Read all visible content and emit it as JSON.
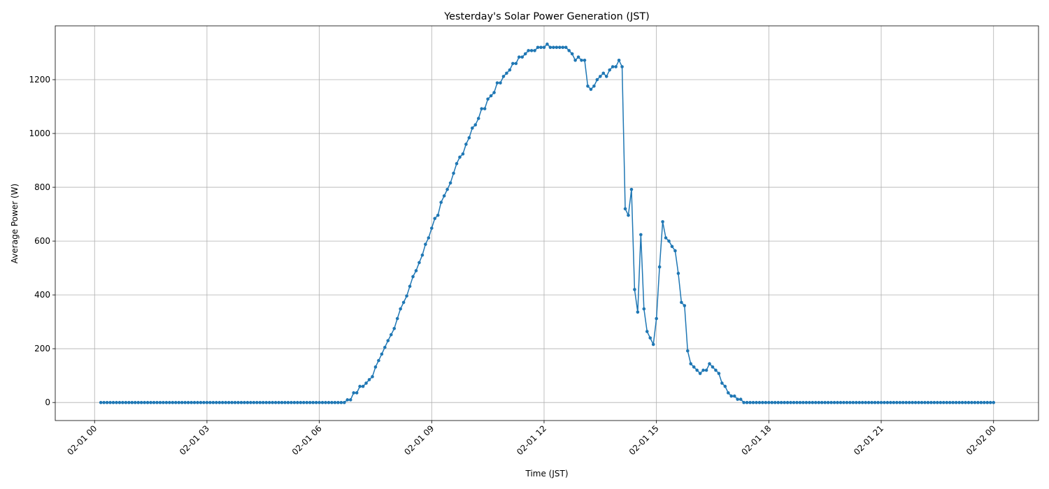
{
  "chart_data": {
    "type": "line",
    "title": "Yesterday's Solar Power Generation (JST)",
    "x_label": "Time (JST)",
    "y_label": "Average Power (W)",
    "x": [
      10,
      15,
      20,
      25,
      30,
      35,
      40,
      45,
      50,
      55,
      60,
      65,
      70,
      75,
      80,
      85,
      90,
      95,
      100,
      105,
      110,
      115,
      120,
      125,
      130,
      135,
      140,
      145,
      150,
      155,
      160,
      165,
      170,
      175,
      180,
      185,
      190,
      195,
      200,
      205,
      210,
      215,
      220,
      225,
      230,
      235,
      240,
      245,
      250,
      255,
      260,
      265,
      270,
      275,
      280,
      285,
      290,
      295,
      300,
      305,
      310,
      315,
      320,
      325,
      330,
      335,
      340,
      345,
      350,
      355,
      360,
      365,
      370,
      375,
      380,
      385,
      390,
      395,
      400,
      405,
      410,
      415,
      420,
      425,
      430,
      435,
      440,
      445,
      450,
      455,
      460,
      465,
      470,
      475,
      480,
      485,
      490,
      495,
      500,
      505,
      510,
      515,
      520,
      525,
      530,
      535,
      540,
      545,
      550,
      555,
      560,
      565,
      570,
      575,
      580,
      585,
      590,
      595,
      600,
      605,
      610,
      615,
      620,
      625,
      630,
      635,
      640,
      645,
      650,
      655,
      660,
      665,
      670,
      675,
      680,
      685,
      690,
      695,
      700,
      705,
      710,
      715,
      720,
      725,
      730,
      735,
      740,
      745,
      750,
      755,
      760,
      765,
      770,
      775,
      780,
      785,
      790,
      795,
      800,
      805,
      810,
      815,
      820,
      825,
      830,
      835,
      840,
      845,
      850,
      855,
      860,
      865,
      870,
      875,
      880,
      885,
      890,
      895,
      900,
      905,
      910,
      915,
      920,
      925,
      930,
      935,
      940,
      945,
      950,
      955,
      960,
      965,
      970,
      975,
      980,
      985,
      990,
      995,
      1000,
      1005,
      1010,
      1015,
      1020,
      1025,
      1030,
      1035,
      1040,
      1045,
      1050,
      1055,
      1060,
      1065,
      1070,
      1075,
      1080,
      1085,
      1090,
      1095,
      1100,
      1105,
      1110,
      1115,
      1120,
      1125,
      1130,
      1135,
      1140,
      1145,
      1150,
      1155,
      1160,
      1165,
      1170,
      1175,
      1180,
      1185,
      1190,
      1195,
      1200,
      1205,
      1210,
      1215,
      1220,
      1225,
      1230,
      1235,
      1240,
      1245,
      1250,
      1255,
      1260,
      1265,
      1270,
      1275,
      1280,
      1285,
      1290,
      1295,
      1300,
      1305,
      1310,
      1315,
      1320,
      1325,
      1330,
      1335,
      1340,
      1345,
      1350,
      1355,
      1360,
      1365,
      1370,
      1375,
      1380,
      1385,
      1390,
      1395,
      1400,
      1405,
      1410,
      1415,
      1420,
      1425,
      1430,
      1435,
      1440
    ],
    "series": [
      {
        "name": "Average Power",
        "color": "#1f77b4",
        "values": [
          0,
          0,
          0,
          0,
          0,
          0,
          0,
          0,
          0,
          0,
          0,
          0,
          0,
          0,
          0,
          0,
          0,
          0,
          0,
          0,
          0,
          0,
          0,
          0,
          0,
          0,
          0,
          0,
          0,
          0,
          0,
          0,
          0,
          0,
          0,
          0,
          0,
          0,
          0,
          0,
          0,
          0,
          0,
          0,
          0,
          0,
          0,
          0,
          0,
          0,
          0,
          0,
          0,
          0,
          0,
          0,
          0,
          0,
          0,
          0,
          0,
          0,
          0,
          0,
          0,
          0,
          0,
          0,
          0,
          0,
          0,
          0,
          0,
          0,
          0,
          0,
          0,
          0,
          0,
          10,
          10,
          36,
          36,
          60,
          60,
          72,
          85,
          96,
          132,
          156,
          180,
          205,
          230,
          252,
          275,
          312,
          348,
          372,
          396,
          432,
          468,
          490,
          520,
          548,
          588,
          612,
          648,
          684,
          696,
          744,
          768,
          792,
          816,
          852,
          888,
          912,
          924,
          960,
          984,
          1020,
          1032,
          1056,
          1092,
          1092,
          1128,
          1140,
          1152,
          1188,
          1188,
          1212,
          1224,
          1236,
          1260,
          1260,
          1284,
          1284,
          1296,
          1308,
          1308,
          1308,
          1320,
          1320,
          1320,
          1332,
          1320,
          1320,
          1320,
          1320,
          1320,
          1320,
          1308,
          1296,
          1272,
          1284,
          1272,
          1272,
          1176,
          1164,
          1176,
          1200,
          1212,
          1224,
          1212,
          1236,
          1248,
          1248,
          1272,
          1248,
          720,
          696,
          792,
          420,
          336,
          624,
          348,
          264,
          240,
          216,
          312,
          504,
          672,
          612,
          600,
          580,
          564,
          480,
          372,
          360,
          192,
          144,
          132,
          120,
          108,
          120,
          120,
          144,
          132,
          120,
          108,
          72,
          60,
          36,
          24,
          24,
          12,
          12,
          0,
          0,
          0,
          0,
          0,
          0,
          0,
          0,
          0,
          0,
          0,
          0,
          0,
          0,
          0,
          0,
          0,
          0,
          0,
          0,
          0,
          0,
          0,
          0,
          0,
          0,
          0,
          0,
          0,
          0,
          0,
          0,
          0,
          0,
          0,
          0,
          0,
          0,
          0,
          0,
          0,
          0,
          0,
          0,
          0,
          0,
          0,
          0,
          0,
          0,
          0,
          0,
          0,
          0,
          0,
          0,
          0,
          0,
          0,
          0,
          0,
          0,
          0,
          0,
          0,
          0,
          0,
          0,
          0,
          0,
          0,
          0,
          0,
          0,
          0,
          0,
          0,
          0,
          0,
          0,
          0
        ]
      }
    ],
    "xlim": [
      -63,
      1512
    ],
    "xticks": [
      {
        "value": 0,
        "label": "02-01 00"
      },
      {
        "value": 180,
        "label": "02-01 03"
      },
      {
        "value": 360,
        "label": "02-01 06"
      },
      {
        "value": 540,
        "label": "02-01 09"
      },
      {
        "value": 720,
        "label": "02-01 12"
      },
      {
        "value": 900,
        "label": "02-01 15"
      },
      {
        "value": 1080,
        "label": "02-01 18"
      },
      {
        "value": 1260,
        "label": "02-01 21"
      },
      {
        "value": 1440,
        "label": "02-02 00"
      }
    ],
    "ylim": [
      -67,
      1400
    ],
    "yticks": [
      0,
      200,
      400,
      600,
      800,
      1000,
      1200
    ],
    "grid": true
  }
}
